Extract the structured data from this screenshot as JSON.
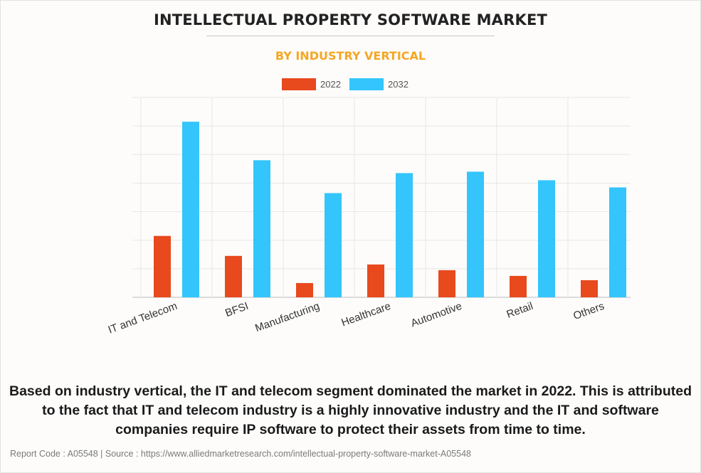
{
  "header": {
    "title": "INTELLECTUAL PROPERTY SOFTWARE MARKET",
    "subtitle": "BY INDUSTRY VERTICAL"
  },
  "chart_data": {
    "type": "bar",
    "categories": [
      "IT and Telecom",
      "BFSI",
      "Manufacturing",
      "Healthcare",
      "Automotive",
      "Retail",
      "Others"
    ],
    "series": [
      {
        "name": "2022",
        "color": "#e8491d",
        "values": [
          21.5,
          14.5,
          5,
          11.5,
          9.5,
          7.5,
          6
        ]
      },
      {
        "name": "2032",
        "color": "#33c5fb",
        "values": [
          61.5,
          48,
          36.5,
          43.5,
          44,
          41,
          38.5
        ]
      }
    ],
    "ylim": [
      0,
      70
    ],
    "grid": true,
    "legend_position": "top-center",
    "xlabel": "",
    "ylabel": ""
  },
  "summary": "Based on industry vertical, the IT and telecom segment dominated the market in 2022. This is attributed to the fact that IT and telecom industry is a highly innovative industry and the IT and software companies require IP software to protect their assets from time to time.",
  "footer": "Report Code : A05548  |  Source : https://www.alliedmarketresearch.com/intellectual-property-software-market-A05548"
}
